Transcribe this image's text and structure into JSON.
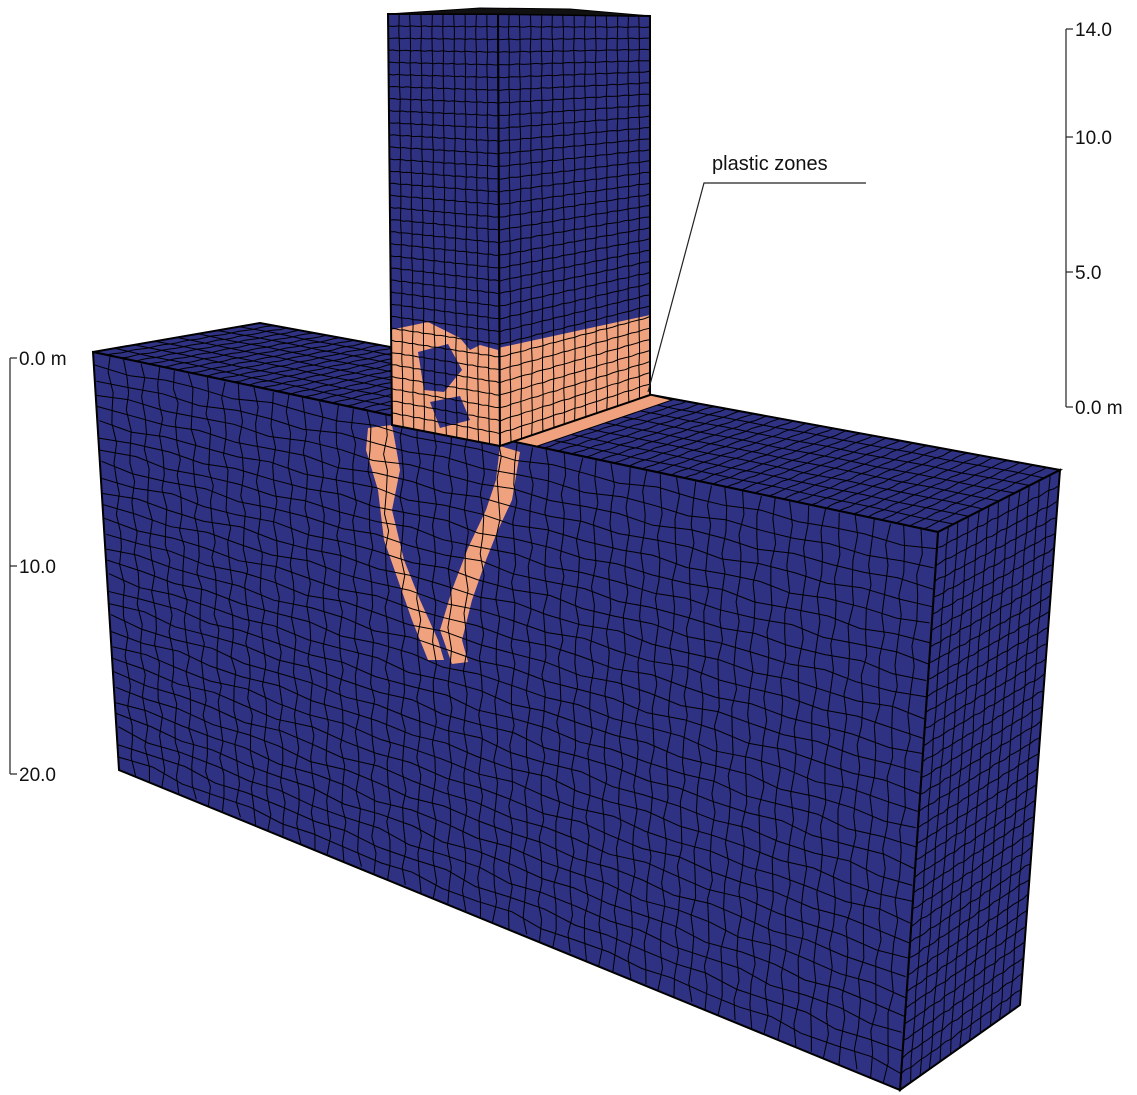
{
  "colors": {
    "elastic": "#2f3182",
    "plastic": "#f0a27e",
    "mesh_line": "#000000",
    "background": "#ffffff"
  },
  "annotation": {
    "label": "plastic zones"
  },
  "scales": {
    "depth": {
      "ticks": [
        "0.0 m",
        "10.0",
        "20.0"
      ]
    },
    "height": {
      "ticks": [
        "14.0",
        "10.0",
        "5.0",
        "0.0 m"
      ]
    }
  }
}
